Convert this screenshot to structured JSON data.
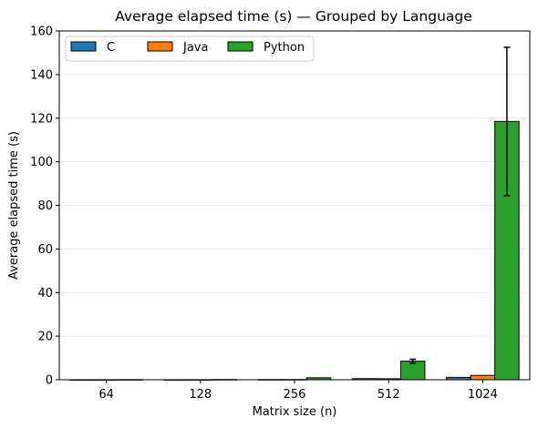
{
  "chart_data": {
    "type": "bar",
    "title": "Average elapsed time (s) — Grouped by Language",
    "xlabel": "Matrix size (n)",
    "ylabel": "Average elapsed time (s)",
    "categories": [
      "64",
      "128",
      "256",
      "512",
      "1024"
    ],
    "ylim": [
      0,
      160
    ],
    "yticks": [
      0,
      20,
      40,
      60,
      80,
      100,
      120,
      140,
      160
    ],
    "grid": "y-major",
    "legend": {
      "placement": "top-left",
      "columns": 3
    },
    "series": [
      {
        "name": "C",
        "color": "#1f77b4",
        "values": [
          0.002,
          0.01,
          0.08,
          0.5,
          1.1
        ],
        "errors": [
          0,
          0,
          0,
          0,
          0
        ]
      },
      {
        "name": "Java",
        "color": "#ff7f0e",
        "values": [
          0.01,
          0.03,
          0.1,
          0.45,
          2.0
        ],
        "errors": [
          0,
          0,
          0,
          0,
          0
        ]
      },
      {
        "name": "Python",
        "color": "#2ca02c",
        "values": [
          0.05,
          0.1,
          0.9,
          8.5,
          118.5
        ],
        "errors": [
          0,
          0,
          0,
          0.9,
          34
        ]
      }
    ]
  }
}
